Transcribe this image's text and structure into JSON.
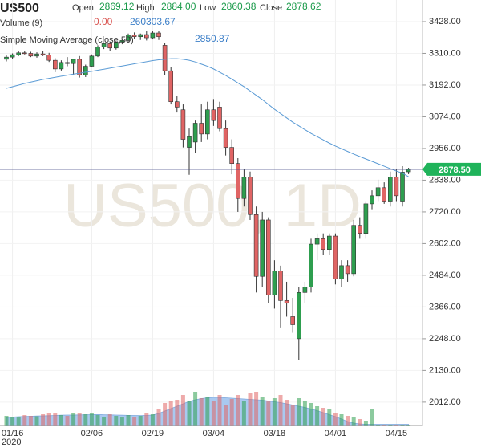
{
  "chart_data": {
    "type": "candlestick",
    "symbol": "US500",
    "watermark": "US500, 1D",
    "legend": {
      "ohlc": [
        {
          "label": "Open",
          "value": "2869.12"
        },
        {
          "label": "High",
          "value": "2884.00"
        },
        {
          "label": "Low",
          "value": "2860.38"
        },
        {
          "label": "Close",
          "value": "2878.62"
        }
      ],
      "volume": {
        "label": "Volume (9)",
        "values": [
          "0.00",
          "260303.67"
        ]
      },
      "sma": {
        "label": "Simple Moving Average (close,50)",
        "value": "2850.87"
      }
    },
    "categories": [
      null,
      "01/16",
      null,
      null,
      null,
      null,
      null,
      null,
      null,
      null,
      null,
      null,
      null,
      null,
      "02/06",
      null,
      null,
      null,
      null,
      null,
      null,
      null,
      null,
      null,
      "02/19",
      null,
      null,
      null,
      null,
      null,
      null,
      null,
      null,
      null,
      "03/04",
      null,
      null,
      null,
      null,
      null,
      null,
      null,
      null,
      null,
      "03/18",
      null,
      null,
      null,
      null,
      null,
      null,
      null,
      null,
      null,
      "04/01",
      null,
      null,
      null,
      null,
      null,
      null,
      null,
      null,
      null,
      "04/15",
      null,
      null
    ],
    "year_label": "2020",
    "open": [
      3288,
      3296,
      3305,
      3312,
      3310,
      3300,
      3308,
      3304,
      3284,
      3252,
      3276,
      3272,
      3288,
      3230,
      3262,
      3300,
      3334,
      3346,
      3330,
      3352,
      3358,
      3378,
      3372,
      3380,
      3368,
      3386,
      3340,
      3245,
      3130,
      3100,
      2960,
      2980,
      3050,
      3010,
      3100,
      3110,
      3030,
      2960,
      2900,
      2770,
      2850,
      2710,
      2480,
      2690,
      2410,
      2500,
      2390,
      2330,
      2248,
      2420,
      2440,
      2600,
      2620,
      2580,
      2630,
      2470,
      2520,
      2490,
      2670,
      2640,
      2750,
      2780,
      2810,
      2760,
      2850,
      2760,
      2869.12
    ],
    "high": [
      3302,
      3310,
      3318,
      3320,
      3316,
      3314,
      3320,
      3312,
      3292,
      3284,
      3296,
      3290,
      3300,
      3268,
      3306,
      3340,
      3350,
      3352,
      3356,
      3362,
      3384,
      3388,
      3384,
      3392,
      3394,
      3392,
      3350,
      3260,
      3150,
      3120,
      3030,
      3060,
      3120,
      3130,
      3140,
      3130,
      3060,
      2990,
      2920,
      2880,
      2870,
      2740,
      2720,
      2700,
      2540,
      2520,
      2460,
      2400,
      2440,
      2460,
      2620,
      2640,
      2640,
      2640,
      2640,
      2540,
      2540,
      2690,
      2700,
      2760,
      2800,
      2840,
      2830,
      2870,
      2880,
      2890,
      2884.0
    ],
    "low": [
      3280,
      3290,
      3300,
      3306,
      3296,
      3294,
      3300,
      3278,
      3240,
      3246,
      3262,
      3228,
      3220,
      3222,
      3258,
      3296,
      3326,
      3320,
      3324,
      3344,
      3352,
      3364,
      3360,
      3358,
      3362,
      3360,
      3230,
      3120,
      3090,
      2960,
      2858,
      2940,
      2980,
      2990,
      3040,
      3020,
      2930,
      2860,
      2720,
      2740,
      2690,
      2420,
      2440,
      2380,
      2360,
      2290,
      2330,
      2270,
      2170,
      2380,
      2420,
      2540,
      2560,
      2560,
      2450,
      2440,
      2460,
      2480,
      2620,
      2620,
      2730,
      2760,
      2750,
      2740,
      2760,
      2740,
      2860.38
    ],
    "close": [
      3296,
      3305,
      3312,
      3310,
      3300,
      3308,
      3304,
      3284,
      3252,
      3276,
      3272,
      3288,
      3230,
      3262,
      3300,
      3334,
      3346,
      3330,
      3352,
      3358,
      3378,
      3372,
      3380,
      3368,
      3386,
      3372,
      3245,
      3130,
      3110,
      2990,
      3000,
      3050,
      3010,
      3100,
      3060,
      3030,
      2960,
      2900,
      2770,
      2850,
      2710,
      2480,
      2690,
      2410,
      2500,
      2390,
      2380,
      2300,
      2420,
      2440,
      2600,
      2620,
      2580,
      2630,
      2470,
      2520,
      2490,
      2670,
      2640,
      2750,
      2780,
      2810,
      2760,
      2850,
      2780,
      2868,
      2878.62
    ],
    "up_color": "#2e9e4f",
    "down_color": "#e06464",
    "volume": [
      120,
      110,
      100,
      130,
      120,
      115,
      140,
      150,
      160,
      130,
      120,
      150,
      160,
      140,
      150,
      130,
      110,
      140,
      120,
      100,
      130,
      110,
      120,
      150,
      140,
      200,
      280,
      300,
      320,
      380,
      300,
      420,
      340,
      360,
      300,
      380,
      260,
      330,
      380,
      300,
      400,
      420,
      360,
      300,
      340,
      380,
      320,
      260,
      340,
      300,
      280,
      240,
      220,
      200,
      160,
      140,
      120,
      100,
      80,
      60,
      200,
      10,
      10,
      10,
      10,
      10,
      10
    ],
    "volume_ma": [
      100,
      105,
      110,
      112,
      115,
      118,
      120,
      122,
      125,
      128,
      130,
      130,
      132,
      134,
      135,
      136,
      134,
      132,
      130,
      128,
      126,
      125,
      124,
      126,
      130,
      150,
      180,
      210,
      240,
      270,
      300,
      320,
      335,
      345,
      350,
      350,
      345,
      340,
      335,
      330,
      325,
      320,
      315,
      305,
      295,
      285,
      270,
      255,
      240,
      225,
      205,
      185,
      160,
      135,
      110,
      80,
      50,
      30,
      20,
      15,
      15,
      15,
      15,
      15,
      15,
      15,
      15
    ],
    "vlim": [
      0,
      500
    ],
    "volume_ma_color": "#a9c9f0",
    "sma": [
      3180,
      3186,
      3192,
      3198,
      3203,
      3208,
      3213,
      3217,
      3221,
      3225,
      3229,
      3233,
      3236,
      3240,
      3243,
      3247,
      3251,
      3255,
      3259,
      3263,
      3267,
      3271,
      3275,
      3279,
      3283,
      3286,
      3288,
      3290,
      3290,
      3288,
      3284,
      3278,
      3270,
      3262,
      3252,
      3240,
      3228,
      3214,
      3200,
      3186,
      3170,
      3154,
      3138,
      3120,
      3102,
      3086,
      3070,
      3054,
      3040,
      3026,
      3012,
      3000,
      2988,
      2976,
      2965,
      2955,
      2945,
      2935,
      2926,
      2917,
      2908,
      2899,
      2890,
      2881,
      2872,
      2864,
      2850.87
    ],
    "sma_color": "#5b9bd5",
    "current_price": {
      "value": 2878.5,
      "label": "2878.50"
    },
    "current_price_color": "#1fb35a",
    "ylim": [
      1925,
      3508.6
    ],
    "yticks": [
      {
        "value": 3428,
        "label": "3428.00"
      },
      {
        "value": 3310,
        "label": "3310.00"
      },
      {
        "value": 3192,
        "label": "3192.00"
      },
      {
        "value": 3074,
        "label": "3074.00"
      },
      {
        "value": 2956,
        "label": "2956.00"
      },
      {
        "value": 2838,
        "label": "2838.00"
      },
      {
        "value": 2720,
        "label": "2720.00"
      },
      {
        "value": 2602,
        "label": "2602.00"
      },
      {
        "value": 2484,
        "label": "2484.00"
      },
      {
        "value": 2366,
        "label": "2366.00"
      },
      {
        "value": 2248,
        "label": "2248.00"
      },
      {
        "value": 2130,
        "label": "2130.00"
      },
      {
        "value": 2012,
        "label": "2012.00"
      }
    ],
    "grid": true
  }
}
